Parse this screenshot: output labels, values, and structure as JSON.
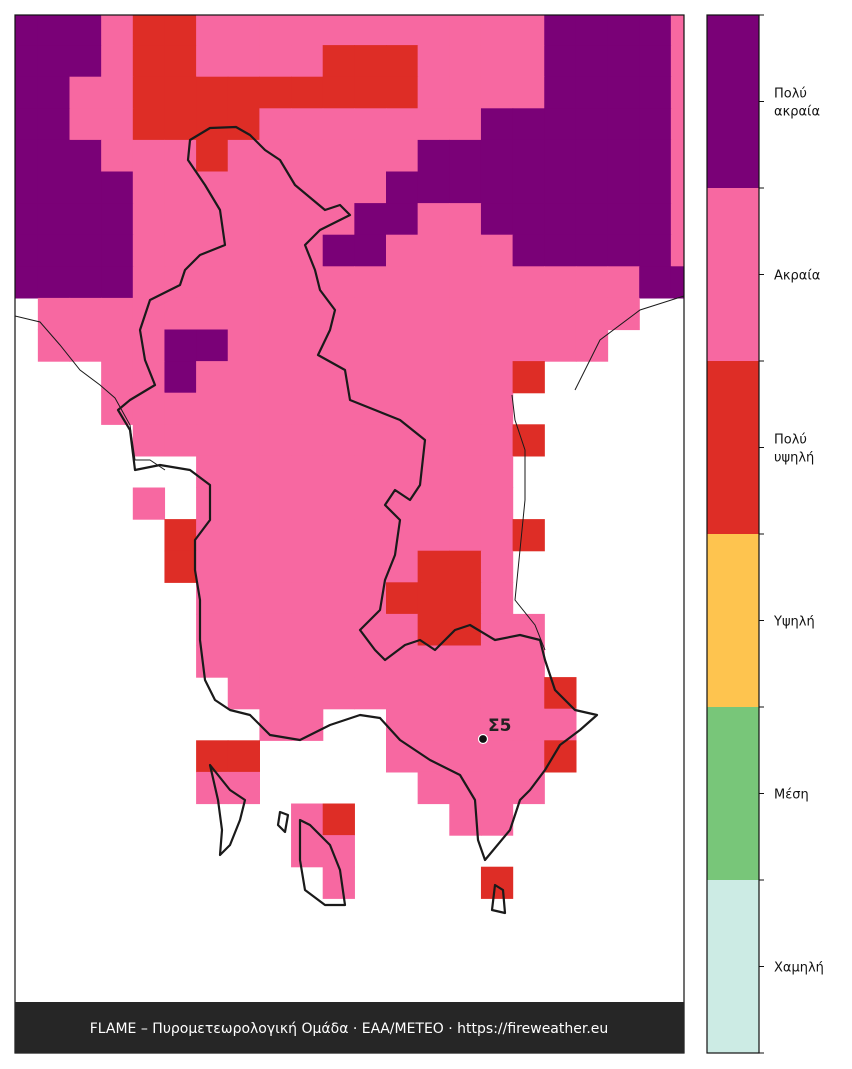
{
  "map": {
    "legend": {
      "items": [
        {
          "label": "Πολύ ακραία",
          "color": "#7a0177"
        },
        {
          "label": "Ακραία",
          "color": "#f768a1"
        },
        {
          "label": "Πολύ υψηλή",
          "color": "#de2d26"
        },
        {
          "label": "Υψηλή",
          "color": "#fec44f"
        },
        {
          "label": "Μέση",
          "color": "#78c679"
        },
        {
          "label": "Χαμηλή",
          "color": "#ccebe4"
        }
      ]
    },
    "station": {
      "label": "Σ5"
    },
    "footer": "FLAME – Πυρομετεωρολογική Ομάδα · ΕΑΑ/METEO · https://fireweather.eu"
  }
}
